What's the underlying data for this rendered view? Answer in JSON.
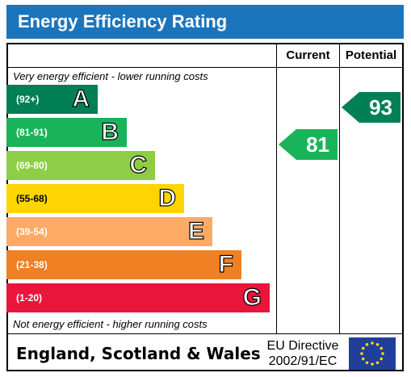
{
  "title": "Energy Efficiency Rating",
  "columns": {
    "current": "Current",
    "potential": "Potential"
  },
  "top_caption": "Very energy efficient - lower running costs",
  "bottom_caption": "Not energy efficient - higher running costs",
  "footer": {
    "region": "England, Scotland & Wales",
    "directive_line1": "EU Directive",
    "directive_line2": "2002/91/EC",
    "flag_icon": "eu-flag-icon"
  },
  "chart_data": {
    "type": "bar",
    "title": "Energy Efficiency Rating",
    "categories": [
      "A",
      "B",
      "C",
      "D",
      "E",
      "F",
      "G"
    ],
    "ranges": [
      "(92+)",
      "(81-91)",
      "(69-80)",
      "(55-68)",
      "(39-54)",
      "(21-38)",
      "(1-20)"
    ],
    "colors": [
      "#008054",
      "#19b459",
      "#8dce46",
      "#ffd500",
      "#fcaa65",
      "#ef8023",
      "#e9153b"
    ],
    "current": {
      "value": 81,
      "color": "#19b459"
    },
    "potential": {
      "value": 93,
      "color": "#008054"
    }
  }
}
